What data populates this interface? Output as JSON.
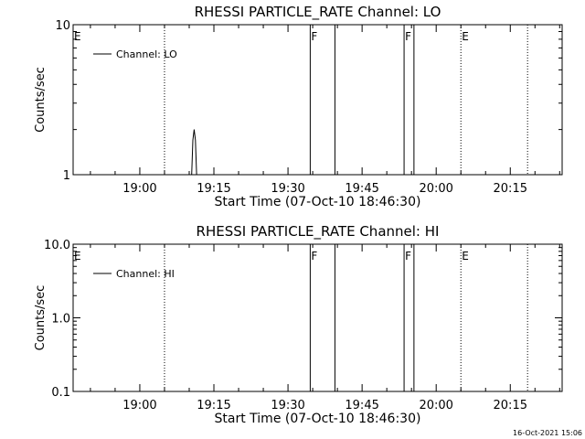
{
  "chart_data": [
    {
      "type": "line",
      "title": "RHESSI PARTICLE_RATE Channel: LO",
      "xlabel": "Start Time (07-Oct-10 18:46:30)",
      "ylabel": "Counts/sec",
      "yscale": "log",
      "ylim": [
        1,
        10
      ],
      "yticks": [
        "1",
        "10"
      ],
      "xlim": [
        "18:46:30",
        "20:25:30"
      ],
      "xticks": [
        "19:00",
        "19:15",
        "19:30",
        "19:45",
        "20:00",
        "20:15"
      ],
      "legend": {
        "label": "Channel: LO",
        "placement": "top-left"
      },
      "series": [
        {
          "name": "Channel: LO",
          "x": [
            "19:10:30",
            "19:10:45",
            "19:11:00",
            "19:11:15",
            "19:11:30"
          ],
          "values": [
            1.0,
            1.7,
            2.0,
            1.7,
            1.0
          ]
        }
      ],
      "markers": [
        {
          "time": "18:46:30",
          "label": "E",
          "style": "dotted"
        },
        {
          "time": "19:05:00",
          "label": "",
          "style": "dotted"
        },
        {
          "time": "19:34:30",
          "label": "F",
          "style": "solid"
        },
        {
          "time": "19:39:30",
          "label": "",
          "style": "solid"
        },
        {
          "time": "19:53:30",
          "label": "F",
          "style": "solid"
        },
        {
          "time": "19:55:30",
          "label": "",
          "style": "solid"
        },
        {
          "time": "20:05:00",
          "label": "E",
          "style": "dotted"
        },
        {
          "time": "20:18:30",
          "label": "",
          "style": "dotted"
        }
      ]
    },
    {
      "type": "line",
      "title": "RHESSI PARTICLE_RATE Channel: HI",
      "xlabel": "Start Time (07-Oct-10 18:46:30)",
      "ylabel": "Counts/sec",
      "yscale": "log",
      "ylim": [
        0.1,
        10
      ],
      "yticks": [
        "0.1",
        "1.0",
        "10.0"
      ],
      "xlim": [
        "18:46:30",
        "20:25:30"
      ],
      "xticks": [
        "19:00",
        "19:15",
        "19:30",
        "19:45",
        "20:00",
        "20:15"
      ],
      "legend": {
        "label": "Channel: HI",
        "placement": "top-left"
      },
      "series": [
        {
          "name": "Channel: HI",
          "x": [],
          "values": []
        }
      ],
      "markers": [
        {
          "time": "18:46:30",
          "label": "E",
          "style": "dotted"
        },
        {
          "time": "19:05:00",
          "label": "",
          "style": "dotted"
        },
        {
          "time": "19:34:30",
          "label": "F",
          "style": "solid"
        },
        {
          "time": "19:39:30",
          "label": "",
          "style": "solid"
        },
        {
          "time": "19:53:30",
          "label": "F",
          "style": "solid"
        },
        {
          "time": "19:55:30",
          "label": "",
          "style": "solid"
        },
        {
          "time": "20:05:00",
          "label": "E",
          "style": "dotted"
        },
        {
          "time": "20:18:30",
          "label": "",
          "style": "dotted"
        }
      ]
    }
  ],
  "footer": {
    "timestamp": "16-Oct-2021 15:06"
  }
}
